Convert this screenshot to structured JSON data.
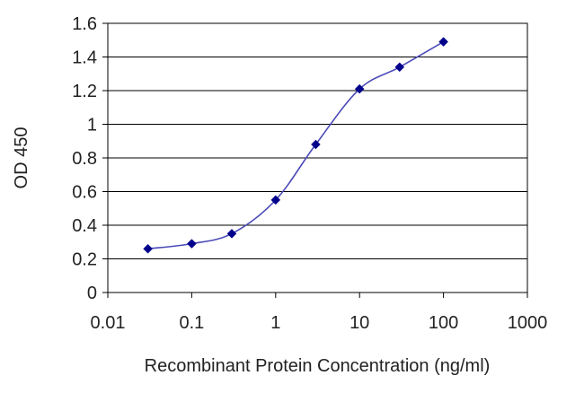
{
  "chart_data": {
    "type": "line",
    "title": "",
    "xlabel": "Recombinant Protein Concentration (ng/ml)",
    "ylabel": "OD 450",
    "x_scale": "log",
    "xlim": [
      0.01,
      1000
    ],
    "ylim": [
      0,
      1.6
    ],
    "x_ticks": [
      0.01,
      0.1,
      1,
      10,
      100,
      1000
    ],
    "x_tick_labels": [
      "0.01",
      "0.1",
      "1",
      "10",
      "100",
      "1000"
    ],
    "y_ticks": [
      0,
      0.2,
      0.4,
      0.6,
      0.8,
      1,
      1.2,
      1.4,
      1.6
    ],
    "y_tick_labels": [
      "0",
      "0.2",
      "0.4",
      "0.6",
      "0.8",
      "1",
      "1.2",
      "1.4",
      "1.6"
    ],
    "grid": "horizontal",
    "legend": "none",
    "series": [
      {
        "x": [
          0.03,
          0.1,
          0.3,
          1,
          3,
          10,
          30,
          100
        ],
        "y": [
          0.26,
          0.29,
          0.35,
          0.55,
          0.88,
          1.21,
          1.34,
          1.49
        ],
        "color": "#00008b",
        "line_color": "#4a4ab8",
        "marker": "diamond"
      }
    ]
  }
}
